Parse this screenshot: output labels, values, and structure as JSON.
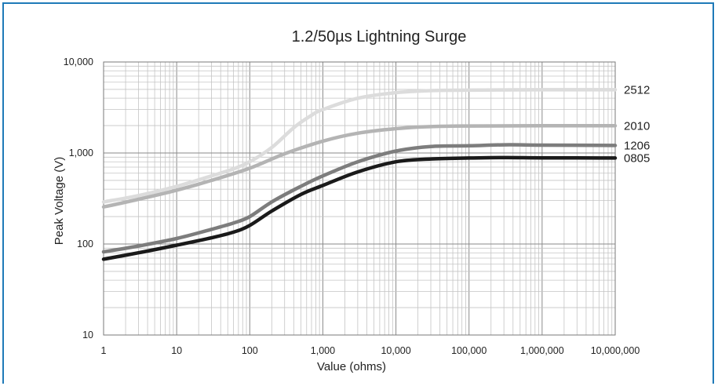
{
  "chart_data": {
    "type": "line",
    "title": "1.2/50µs Lightning Surge",
    "xlabel": "Value (ohms)",
    "ylabel": "Peak Voltage (V)",
    "x_scale": "log",
    "y_scale": "log",
    "xlim": [
      1,
      10000000
    ],
    "ylim": [
      10,
      10000
    ],
    "grid": true,
    "x_ticks": [
      {
        "value": 1,
        "label": "1"
      },
      {
        "value": 10,
        "label": "10"
      },
      {
        "value": 100,
        "label": "100"
      },
      {
        "value": 1000,
        "label": "1,000"
      },
      {
        "value": 10000,
        "label": "10,000"
      },
      {
        "value": 100000,
        "label": "100,000"
      },
      {
        "value": 1000000,
        "label": "1,000,000"
      },
      {
        "value": 10000000,
        "label": "10,000,000"
      }
    ],
    "y_ticks": [
      {
        "value": 10,
        "label": "10"
      },
      {
        "value": 100,
        "label": "100"
      },
      {
        "value": 1000,
        "label": "1,000"
      },
      {
        "value": 10000,
        "label": "10,000"
      }
    ],
    "series": [
      {
        "name": "2512",
        "color": "#dcdcdc",
        "points": [
          [
            1,
            290
          ],
          [
            3,
            340
          ],
          [
            10,
            430
          ],
          [
            30,
            560
          ],
          [
            60,
            670
          ],
          [
            100,
            800
          ],
          [
            200,
            1150
          ],
          [
            400,
            1900
          ],
          [
            700,
            2600
          ],
          [
            1000,
            3000
          ],
          [
            3000,
            4000
          ],
          [
            10000,
            4600
          ],
          [
            30000,
            4850
          ],
          [
            100000,
            4900
          ],
          [
            1000000,
            4950
          ],
          [
            10000000,
            4950
          ]
        ]
      },
      {
        "name": "2010",
        "color": "#b4b4b4",
        "points": [
          [
            1,
            255
          ],
          [
            3,
            310
          ],
          [
            10,
            390
          ],
          [
            30,
            500
          ],
          [
            100,
            680
          ],
          [
            300,
            980
          ],
          [
            1000,
            1350
          ],
          [
            3000,
            1650
          ],
          [
            10000,
            1850
          ],
          [
            30000,
            1950
          ],
          [
            100000,
            1980
          ],
          [
            1000000,
            1990
          ],
          [
            10000000,
            1990
          ]
        ]
      },
      {
        "name": "1206",
        "color": "#7d7d7d",
        "points": [
          [
            1,
            82
          ],
          [
            3,
            95
          ],
          [
            10,
            115
          ],
          [
            30,
            145
          ],
          [
            60,
            170
          ],
          [
            100,
            200
          ],
          [
            200,
            290
          ],
          [
            500,
            430
          ],
          [
            1000,
            560
          ],
          [
            3000,
            800
          ],
          [
            10000,
            1050
          ],
          [
            30000,
            1180
          ],
          [
            100000,
            1200
          ],
          [
            300000,
            1230
          ],
          [
            1000000,
            1220
          ],
          [
            10000000,
            1210
          ]
        ]
      },
      {
        "name": "0805",
        "color": "#1a1a1a",
        "points": [
          [
            1,
            68
          ],
          [
            3,
            80
          ],
          [
            10,
            97
          ],
          [
            30,
            117
          ],
          [
            60,
            135
          ],
          [
            100,
            160
          ],
          [
            200,
            230
          ],
          [
            500,
            350
          ],
          [
            1000,
            440
          ],
          [
            3000,
            620
          ],
          [
            10000,
            800
          ],
          [
            30000,
            860
          ],
          [
            100000,
            880
          ],
          [
            300000,
            890
          ],
          [
            1000000,
            885
          ],
          [
            10000000,
            880
          ]
        ]
      }
    ]
  }
}
